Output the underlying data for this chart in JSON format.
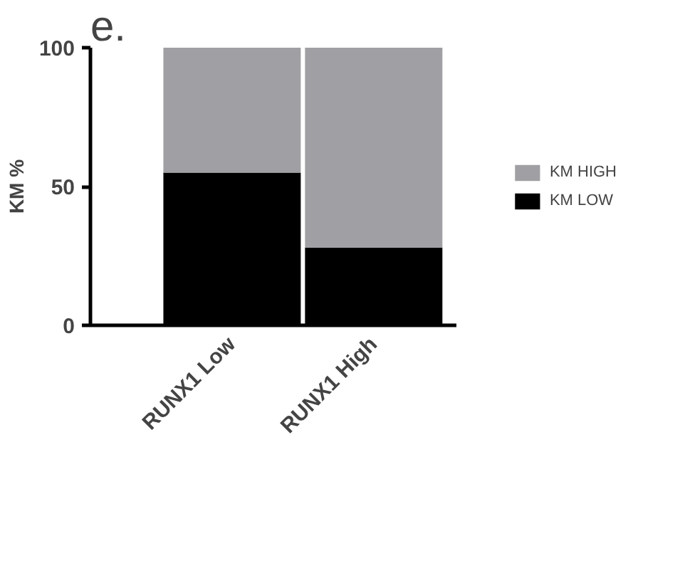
{
  "chart_data": {
    "type": "bar",
    "title": "e.",
    "ylabel": "KM %",
    "stacked": true,
    "categories": [
      "RUNX1 Low",
      "RUNX1 High"
    ],
    "series": [
      {
        "name": "KM LOW",
        "color": "#000000",
        "values": [
          55,
          28
        ]
      },
      {
        "name": "KM HIGH",
        "color": "#a0a0a4",
        "values": [
          45,
          72
        ]
      }
    ],
    "ylim": [
      0,
      100
    ],
    "yticks": [
      0,
      50,
      100
    ],
    "grid": false,
    "legend": "right"
  }
}
